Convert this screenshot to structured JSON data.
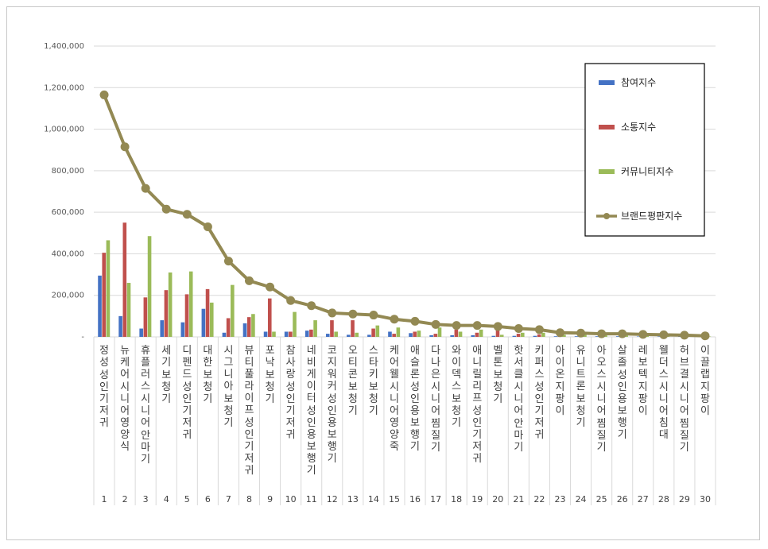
{
  "chart_data": {
    "type": "bar",
    "ylim": [
      0,
      1400000
    ],
    "yticks": [
      "-",
      "200,000",
      "400,000",
      "600,000",
      "800,000",
      "1,000,000",
      "1,200,000",
      "1,400,000"
    ],
    "grid": true,
    "legend_position": "top-right",
    "categories": [
      "정성 성인기저귀",
      "뉴케어 시니어영양식",
      "휴플러스 시니어 안마기",
      "세기 보청기",
      "디펜드 성인기저귀",
      "대한 보청기",
      "시그니아 보청기",
      "뷰티풀라이프 성인기저귀",
      "포낙 보청기",
      "참사랑 성인기저귀",
      "네비게이터 성인용보행기",
      "코지워커 성인용보행기",
      "오티콘 보청기",
      "스타키 보청기",
      "케어웰 시니어영양죽",
      "애슬론 성인용보행기",
      "다나은 시니어 찜질기",
      "와이덱스 보청기",
      "애니릴리프 성인기저귀",
      "벨톤 보청기",
      "핫서클 시니어 안마기",
      "키퍼스 성인기저귀",
      "아이온 지팡이",
      "유니트론 보청기",
      "아오스 시니어 찜질기",
      "살졸 성인용보행기",
      "레보텍 지팡이",
      "웰더스 시니어침대",
      "허브결 시니어 찜질기",
      "이끌랩 지팡이"
    ],
    "ranks": [
      "1",
      "2",
      "3",
      "4",
      "5",
      "6",
      "7",
      "8",
      "9",
      "10",
      "11",
      "12",
      "13",
      "14",
      "15",
      "16",
      "17",
      "18",
      "19",
      "20",
      "21",
      "22",
      "23",
      "24",
      "25",
      "26",
      "27",
      "28",
      "29",
      "30"
    ],
    "series": [
      {
        "name": "참여지수",
        "type": "bar",
        "color": "#4472c4",
        "values": [
          295000,
          100000,
          40000,
          80000,
          70000,
          135000,
          20000,
          65000,
          25000,
          25000,
          30000,
          15000,
          10000,
          10000,
          25000,
          18000,
          8000,
          8000,
          8000,
          5000,
          5000,
          5000,
          3000,
          3000,
          3000,
          3000,
          2000,
          2000,
          2000,
          1000
        ]
      },
      {
        "name": "소통지수",
        "type": "bar",
        "color": "#c0504d",
        "values": [
          405000,
          550000,
          190000,
          225000,
          205000,
          230000,
          90000,
          95000,
          185000,
          25000,
          35000,
          80000,
          80000,
          40000,
          15000,
          25000,
          15000,
          35000,
          20000,
          35000,
          15000,
          12000,
          5000,
          3000,
          3000,
          3000,
          2000,
          2000,
          2000,
          1000
        ]
      },
      {
        "name": "커뮤니티지수",
        "type": "bar",
        "color": "#9bbb59",
        "values": [
          465000,
          260000,
          485000,
          310000,
          315000,
          165000,
          250000,
          110000,
          25000,
          120000,
          80000,
          25000,
          20000,
          55000,
          45000,
          30000,
          45000,
          25000,
          35000,
          10000,
          20000,
          20000,
          10000,
          10000,
          10000,
          8000,
          5000,
          5000,
          3000,
          2000
        ]
      },
      {
        "name": "브랜드평판지수",
        "type": "line",
        "color": "#938953",
        "values": [
          1165000,
          915000,
          715000,
          615000,
          590000,
          530000,
          365000,
          270000,
          240000,
          175000,
          150000,
          115000,
          110000,
          105000,
          85000,
          75000,
          60000,
          55000,
          55000,
          50000,
          40000,
          35000,
          20000,
          18000,
          15000,
          15000,
          12000,
          10000,
          8000,
          5000
        ]
      }
    ]
  }
}
